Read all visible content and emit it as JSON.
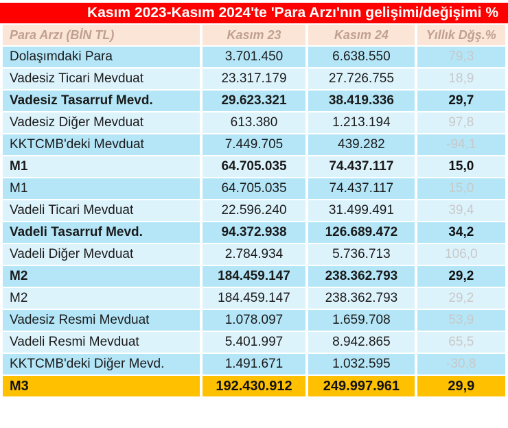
{
  "title": "Kasım 2023-Kasım 2024'te 'Para Arzı'nın gelişimi/değişimi %",
  "headers": [
    "Para Arzı (BİN TL)",
    "Kasım 23",
    "Kasım 24",
    "Yıllık Dğş.%"
  ],
  "rows": [
    {
      "label": "Dolaşımdaki Para",
      "nov23": "3.701.450",
      "nov24": "6.638.550",
      "change": "79,3",
      "bold": false
    },
    {
      "label": "Vadesiz Ticari Mevduat",
      "nov23": "23.317.179",
      "nov24": "27.726.755",
      "change": "18,9",
      "bold": false
    },
    {
      "label": "Vadesiz Tasarruf Mevd.",
      "nov23": "29.623.321",
      "nov24": "38.419.336",
      "change": "29,7",
      "bold": true
    },
    {
      "label": "Vadesiz Diğer Mevduat",
      "nov23": "613.380",
      "nov24": "1.213.194",
      "change": "97,8",
      "bold": false
    },
    {
      "label": "KKTCMB'deki Mevduat",
      "nov23": "7.449.705",
      "nov24": "439.282",
      "change": "-94,1",
      "bold": false
    },
    {
      "label": "M1",
      "nov23": "64.705.035",
      "nov24": "74.437.117",
      "change": "15,0",
      "bold": true
    },
    {
      "label": "M1",
      "nov23": "64.705.035",
      "nov24": "74.437.117",
      "change": "15,0",
      "bold": false
    },
    {
      "label": "Vadeli Ticari Mevduat",
      "nov23": "22.596.240",
      "nov24": "31.499.491",
      "change": "39,4",
      "bold": false
    },
    {
      "label": "Vadeli Tasarruf Mevd.",
      "nov23": "94.372.938",
      "nov24": "126.689.472",
      "change": "34,2",
      "bold": true
    },
    {
      "label": "Vadeli Diğer Mevduat",
      "nov23": "2.784.934",
      "nov24": "5.736.713",
      "change": "106,0",
      "bold": false
    },
    {
      "label": "M2",
      "nov23": "184.459.147",
      "nov24": "238.362.793",
      "change": "29,2",
      "bold": true
    },
    {
      "label": "M2",
      "nov23": "184.459.147",
      "nov24": "238.362.793",
      "change": "29,2",
      "bold": false
    },
    {
      "label": "Vadesiz Resmi Mevduat",
      "nov23": "1.078.097",
      "nov24": "1.659.708",
      "change": "53,9",
      "bold": false
    },
    {
      "label": "Vadeli Resmi Mevduat",
      "nov23": "5.401.997",
      "nov24": "8.942.865",
      "change": "65,5",
      "bold": false
    },
    {
      "label": "KKTCMB'deki Diğer Mevd.",
      "nov23": "1.491.671",
      "nov24": "1.032.595",
      "change": "-30,8",
      "bold": false
    }
  ],
  "total": {
    "label": "M3",
    "nov23": "192.430.912",
    "nov24": "249.997.961",
    "change": "29,9"
  },
  "colors": {
    "title_bg": "#ff0000",
    "header_bg": "#fbe5d6",
    "row_light": "#ddf3fc",
    "row_dark": "#b4e6f8",
    "total_bg": "#ffc000"
  }
}
